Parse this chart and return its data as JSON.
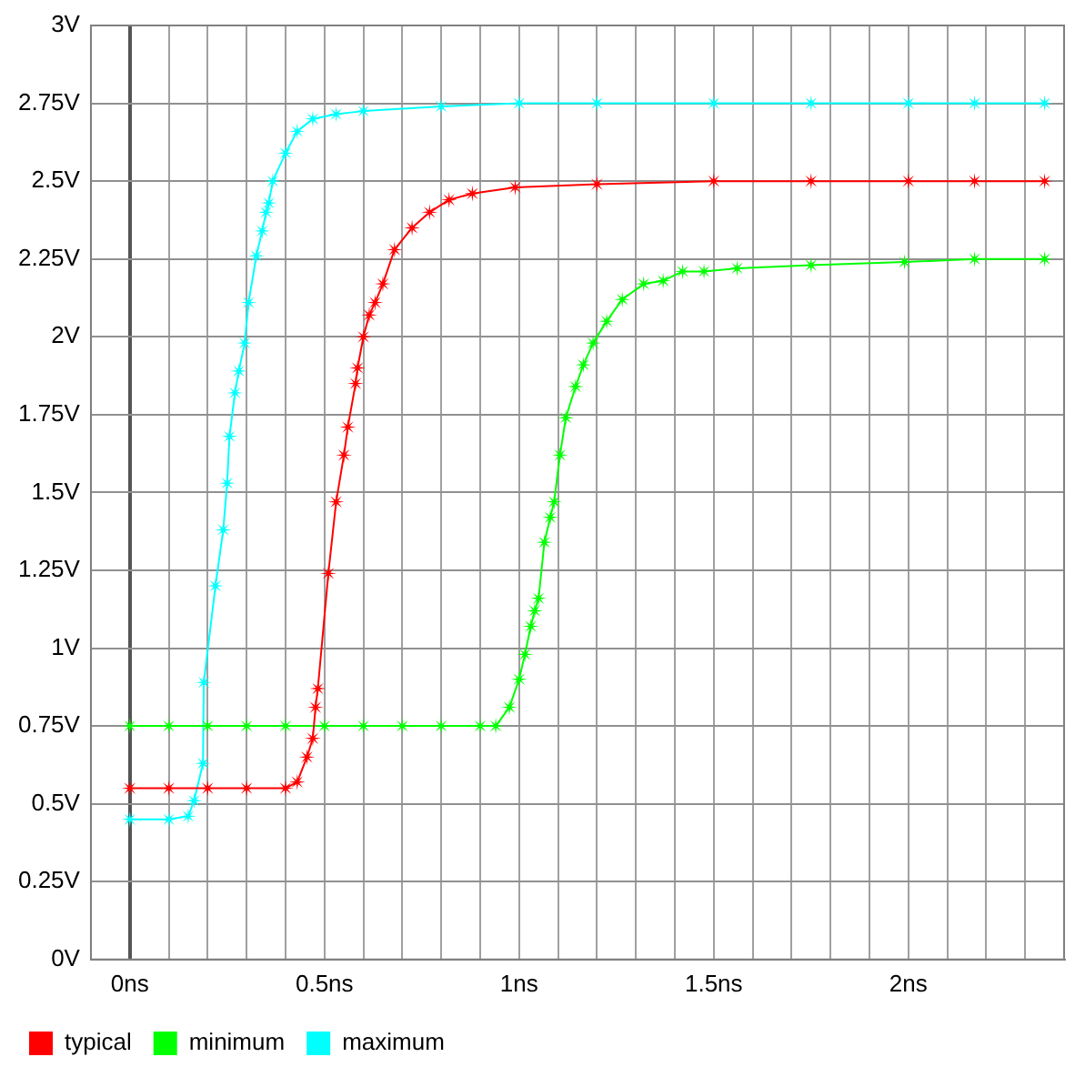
{
  "chart_data": {
    "type": "line",
    "marker": "star",
    "grid": true,
    "legend": "bottom left",
    "xlim": [
      -0.1,
      2.4
    ],
    "xticks": [
      {
        "value": 0,
        "label": "0ns"
      },
      {
        "value": 0.1,
        "label": null
      },
      {
        "value": 0.2,
        "label": null
      },
      {
        "value": 0.3,
        "label": null
      },
      {
        "value": 0.4,
        "label": null
      },
      {
        "value": 0.5,
        "label": "0.5ns"
      },
      {
        "value": 0.6,
        "label": null
      },
      {
        "value": 0.7,
        "label": null
      },
      {
        "value": 0.8,
        "label": null
      },
      {
        "value": 0.9,
        "label": null
      },
      {
        "value": 1,
        "label": "1ns"
      },
      {
        "value": 1.1,
        "label": null
      },
      {
        "value": 1.2,
        "label": null
      },
      {
        "value": 1.3,
        "label": null
      },
      {
        "value": 1.4,
        "label": null
      },
      {
        "value": 1.5,
        "label": "1.5ns"
      },
      {
        "value": 1.6,
        "label": null
      },
      {
        "value": 1.7,
        "label": null
      },
      {
        "value": 1.8,
        "label": null
      },
      {
        "value": 1.9,
        "label": null
      },
      {
        "value": 2,
        "label": "2ns"
      },
      {
        "value": 2.1,
        "label": null
      },
      {
        "value": 2.2,
        "label": null
      },
      {
        "value": 2.3,
        "label": null
      }
    ],
    "ylim": [
      0,
      3
    ],
    "yticks": [
      {
        "value": 0,
        "label": "0V"
      },
      {
        "value": 0.25,
        "label": "0.25V"
      },
      {
        "value": 0.5,
        "label": "0.5V"
      },
      {
        "value": 0.75,
        "label": "0.75V"
      },
      {
        "value": 1,
        "label": "1V"
      },
      {
        "value": 1.25,
        "label": "1.25V"
      },
      {
        "value": 1.5,
        "label": "1.5V"
      },
      {
        "value": 1.75,
        "label": "1.75V"
      },
      {
        "value": 2,
        "label": "2V"
      },
      {
        "value": 2.25,
        "label": "2.25V"
      },
      {
        "value": 2.5,
        "label": "2.5V"
      },
      {
        "value": 2.75,
        "label": "2.75V"
      },
      {
        "value": 3,
        "label": "3V"
      }
    ],
    "series": [
      {
        "name": "typical",
        "color": "#ff0000",
        "x": [
          0,
          0.1,
          0.2,
          0.3,
          0.4,
          0.43,
          0.455,
          0.47,
          0.477,
          0.483,
          0.51,
          0.53,
          0.55,
          0.56,
          0.58,
          0.585,
          0.6,
          0.615,
          0.63,
          0.65,
          0.68,
          0.725,
          0.77,
          0.82,
          0.88,
          0.99,
          1.2,
          1.5,
          1.75,
          2,
          2.17,
          2.35
        ],
        "values": [
          0.55,
          0.55,
          0.55,
          0.55,
          0.55,
          0.57,
          0.65,
          0.71,
          0.81,
          0.87,
          1.24,
          1.47,
          1.62,
          1.71,
          1.85,
          1.9,
          2,
          2.07,
          2.11,
          2.17,
          2.28,
          2.35,
          2.4,
          2.44,
          2.46,
          2.48,
          2.49,
          2.5,
          2.5,
          2.5,
          2.5,
          2.5
        ]
      },
      {
        "name": "minimum",
        "color": "#00ff00",
        "x": [
          0,
          0.1,
          0.2,
          0.3,
          0.4,
          0.5,
          0.6,
          0.7,
          0.8,
          0.9,
          0.94,
          0.975,
          1,
          1.015,
          1.03,
          1.04,
          1.05,
          1.065,
          1.08,
          1.09,
          1.105,
          1.12,
          1.145,
          1.165,
          1.19,
          1.225,
          1.265,
          1.32,
          1.37,
          1.42,
          1.475,
          1.56,
          1.75,
          1.99,
          2.17,
          2.35
        ],
        "values": [
          0.75,
          0.75,
          0.75,
          0.75,
          0.75,
          0.75,
          0.75,
          0.75,
          0.75,
          0.75,
          0.75,
          0.81,
          0.9,
          0.98,
          1.07,
          1.12,
          1.16,
          1.34,
          1.42,
          1.47,
          1.62,
          1.74,
          1.84,
          1.91,
          1.98,
          2.05,
          2.12,
          2.17,
          2.18,
          2.21,
          2.21,
          2.22,
          2.23,
          2.24,
          2.25,
          2.25
        ]
      },
      {
        "name": "maximum",
        "color": "#00ffff",
        "x": [
          0,
          0.1,
          0.15,
          0.165,
          0.188,
          0.19,
          0.22,
          0.24,
          0.25,
          0.256,
          0.27,
          0.28,
          0.295,
          0.305,
          0.325,
          0.34,
          0.35,
          0.357,
          0.367,
          0.4,
          0.43,
          0.47,
          0.53,
          0.6,
          0.8,
          1,
          1.2,
          1.5,
          1.75,
          2,
          2.17,
          2.35
        ],
        "values": [
          0.45,
          0.45,
          0.46,
          0.51,
          0.63,
          0.89,
          1.2,
          1.38,
          1.53,
          1.68,
          1.82,
          1.89,
          1.98,
          2.11,
          2.26,
          2.34,
          2.4,
          2.43,
          2.5,
          2.59,
          2.66,
          2.7,
          2.715,
          2.725,
          2.74,
          2.75,
          2.75,
          2.75,
          2.75,
          2.75,
          2.75,
          2.75
        ]
      }
    ]
  }
}
